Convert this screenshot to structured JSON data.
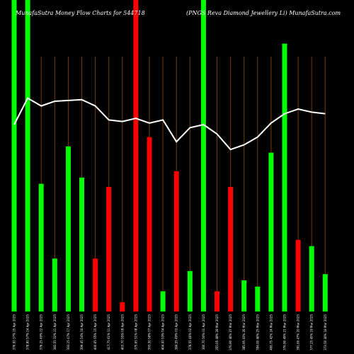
{
  "chart_data": {
    "type": "bar",
    "title_left": "MunafaSutra  Money Flow  Charts for 544718",
    "title_right": "(PNGS Reva  Diamond Jewellery Li) MunafaSutra.com",
    "colors": {
      "up": "#00ff00",
      "down": "#ff0000",
      "line": "#ffffff",
      "grid": "#7a3b00",
      "background": "#000000"
    },
    "categories": [
      "376.00 37% 25 Apr 2025",
      "378.80 57% 24 Apr 2025",
      "376.25 49% 22 Apr 2025",
      "383.55 32% 21 Apr 2025",
      "393.15 47% 17 Apr 2025",
      "399.45 54% 16 Apr 2025",
      "400.65 55% 15 Apr 2025",
      "417.75 61% 11 Apr 2025",
      "403.70 55% 09 Apr 2025",
      "375.65 51% 08 Apr 2025",
      "393.30 58% 07 Apr 2025",
      "404.00 53% 04 Apr 2025",
      "384.55 49% 03 Apr 2025",
      "378.55 46% 02 Apr 2025",
      "360.70 50% 01 Apr 2025",
      "355.05 48% 28 Mar 2025",
      "376.90 46% 27 Mar 2025",
      "385.95 43% 26 Mar 2025",
      "394.00 46% 25 Mar 2025",
      "406.75 42% 24 Mar 2025",
      "376.90 49% 21 Mar 2025",
      "391.60 47% 20 Mar 2025",
      "377.25 45% 19 Mar 2025",
      "373.50 40% 18 Mar 2025"
    ],
    "bars": [
      {
        "dir": "up",
        "value": 100
      },
      {
        "dir": "up",
        "value": 100
      },
      {
        "dir": "up",
        "value": 41
      },
      {
        "dir": "up",
        "value": 17
      },
      {
        "dir": "up",
        "value": 53
      },
      {
        "dir": "up",
        "value": 43
      },
      {
        "dir": "down",
        "value": 17
      },
      {
        "dir": "down",
        "value": 40
      },
      {
        "dir": "down",
        "value": 3
      },
      {
        "dir": "down",
        "value": 100
      },
      {
        "dir": "down",
        "value": 56
      },
      {
        "dir": "up",
        "value": 6.5
      },
      {
        "dir": "down",
        "value": 45
      },
      {
        "dir": "up",
        "value": 13
      },
      {
        "dir": "up",
        "value": 100
      },
      {
        "dir": "down",
        "value": 6.5
      },
      {
        "dir": "down",
        "value": 40
      },
      {
        "dir": "up",
        "value": 10
      },
      {
        "dir": "up",
        "value": 8
      },
      {
        "dir": "up",
        "value": 51
      },
      {
        "dir": "up",
        "value": 86
      },
      {
        "dir": "down",
        "value": 23
      },
      {
        "dir": "up",
        "value": 21
      },
      {
        "dir": "up",
        "value": 12
      }
    ],
    "line": [
      60,
      68.5,
      66,
      67.5,
      67.75,
      68,
      66,
      61.5,
      61,
      62,
      60.5,
      61.5,
      54.5,
      59,
      60,
      57,
      52,
      53.5,
      56,
      60.5,
      63.5,
      65,
      64,
      63.5
    ],
    "ylim": [
      0,
      100
    ]
  }
}
